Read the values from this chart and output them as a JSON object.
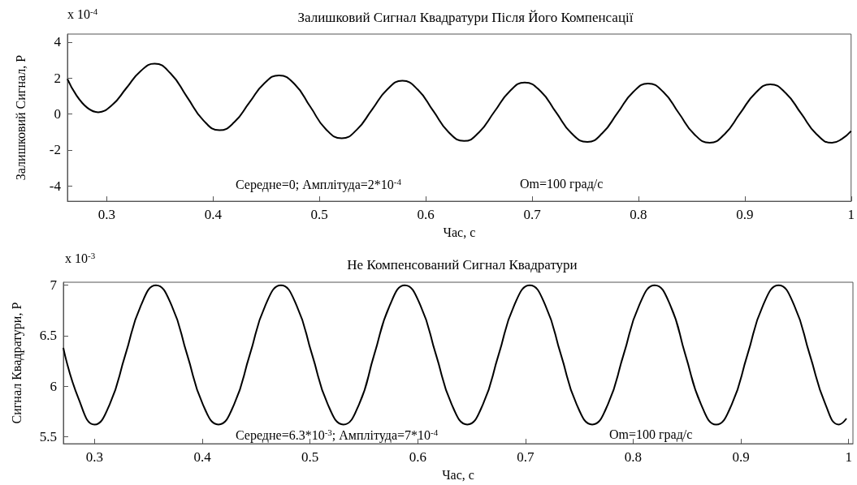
{
  "chart_data": [
    {
      "type": "line",
      "title": "Залишковий Сигнал Квадратури Після Його Компенсації",
      "xlabel": "Час, с",
      "ylabel": "Залишковий Сигнал, Р",
      "annotations": [
        "x 10$^{-4}$",
        "Середне=0; Амплітуда=2*10$^{-4}$",
        "Om=100 град/с"
      ],
      "xlim": [
        0.263,
        1
      ],
      "xticks": [
        0.3,
        0.4,
        0.5,
        0.6,
        0.7,
        0.8,
        0.9,
        1
      ],
      "ylim": [
        -4.85,
        4.45
      ],
      "yticks": [
        -4,
        -2,
        0,
        2,
        4
      ],
      "grid": false,
      "marker": "none",
      "line_style": "solid",
      "series": [
        {
          "color": "#000000",
          "x": [
            0.263,
            0.292,
            0.305,
            0.3185,
            0.332,
            0.345,
            0.36,
            0.3755,
            0.391,
            0.406,
            0.42,
            0.434,
            0.448,
            0.462,
            0.477,
            0.4915,
            0.506,
            0.521,
            0.535,
            0.5495,
            0.564,
            0.578,
            0.5925,
            0.607,
            0.6215,
            0.636,
            0.65,
            0.6645,
            0.679,
            0.693,
            0.708,
            0.7225,
            0.737,
            0.752,
            0.766,
            0.7805,
            0.795,
            0.809,
            0.8235,
            0.838,
            0.8525,
            0.867,
            0.881,
            0.8955,
            0.91,
            0.924,
            0.9385,
            0.953,
            0.9675,
            0.982,
            0.991,
            1
          ],
          "values": [
            1.95,
            0.1,
            0.5,
            1.45,
            2.4,
            2.8,
            2.26,
            0.95,
            -0.36,
            -0.9,
            -0.45,
            0.63,
            1.7,
            2.15,
            1.64,
            0.4,
            -0.84,
            -1.35,
            -0.88,
            0.25,
            1.38,
            1.85,
            1.36,
            0.18,
            -1.01,
            -1.5,
            -1.02,
            0.13,
            1.27,
            1.75,
            1.27,
            0.1,
            -1.07,
            -1.55,
            -1.07,
            0.08,
            1.22,
            1.7,
            1.22,
            0.05,
            -1.12,
            -1.6,
            -1.12,
            0.03,
            1.17,
            1.65,
            1.17,
            0.03,
            -1.12,
            -1.6,
            -1.4,
            -0.95
          ]
        }
      ]
    },
    {
      "type": "line",
      "title": "Не Компенсований Сигнал Квадратури",
      "xlabel": "Час, с",
      "ylabel": "Сигнал Квадратури, Р",
      "annotations": [
        "x 10$^{-3}$",
        "Середне=6.3*10$^{-3}$; Амплітуда=7*10$^{-4}$",
        "Om=100 град/с"
      ],
      "xlim": [
        0.271,
        1.004
      ],
      "xticks": [
        0.3,
        0.4,
        0.5,
        0.6,
        0.7,
        0.8,
        0.9,
        1
      ],
      "ylim": [
        5.43,
        7.03
      ],
      "yticks": [
        5.5,
        6,
        6.5,
        7
      ],
      "grid": false,
      "marker": "none",
      "line_style": "solid",
      "series": [
        {
          "color": "#000000",
          "x": [
            0.271,
            0.285,
            0.3,
            0.314,
            0.3285,
            0.343,
            0.357,
            0.3715,
            0.386,
            0.4005,
            0.415,
            0.4295,
            0.444,
            0.4585,
            0.473,
            0.4875,
            0.502,
            0.5165,
            0.531,
            0.5455,
            0.5595,
            0.574,
            0.588,
            0.6025,
            0.617,
            0.6315,
            0.646,
            0.6605,
            0.675,
            0.6895,
            0.704,
            0.7185,
            0.733,
            0.7475,
            0.762,
            0.7765,
            0.791,
            0.8055,
            0.82,
            0.8345,
            0.8485,
            0.863,
            0.877,
            0.8915,
            0.906,
            0.9205,
            0.935,
            0.9495,
            0.964,
            0.9785,
            0.991,
            0.998
          ],
          "values": [
            6.38,
            5.88,
            5.62,
            5.82,
            6.31,
            6.8,
            7.0,
            6.8,
            6.31,
            5.82,
            5.62,
            5.82,
            6.31,
            6.8,
            7.0,
            6.8,
            6.31,
            5.82,
            5.62,
            5.82,
            6.31,
            6.8,
            7.0,
            6.8,
            6.31,
            5.82,
            5.62,
            5.82,
            6.31,
            6.8,
            7.0,
            6.8,
            6.31,
            5.82,
            5.62,
            5.82,
            6.31,
            6.8,
            7.0,
            6.8,
            6.31,
            5.82,
            5.62,
            5.82,
            6.31,
            6.8,
            7.0,
            6.8,
            6.31,
            5.82,
            5.62,
            5.68
          ]
        }
      ]
    }
  ]
}
